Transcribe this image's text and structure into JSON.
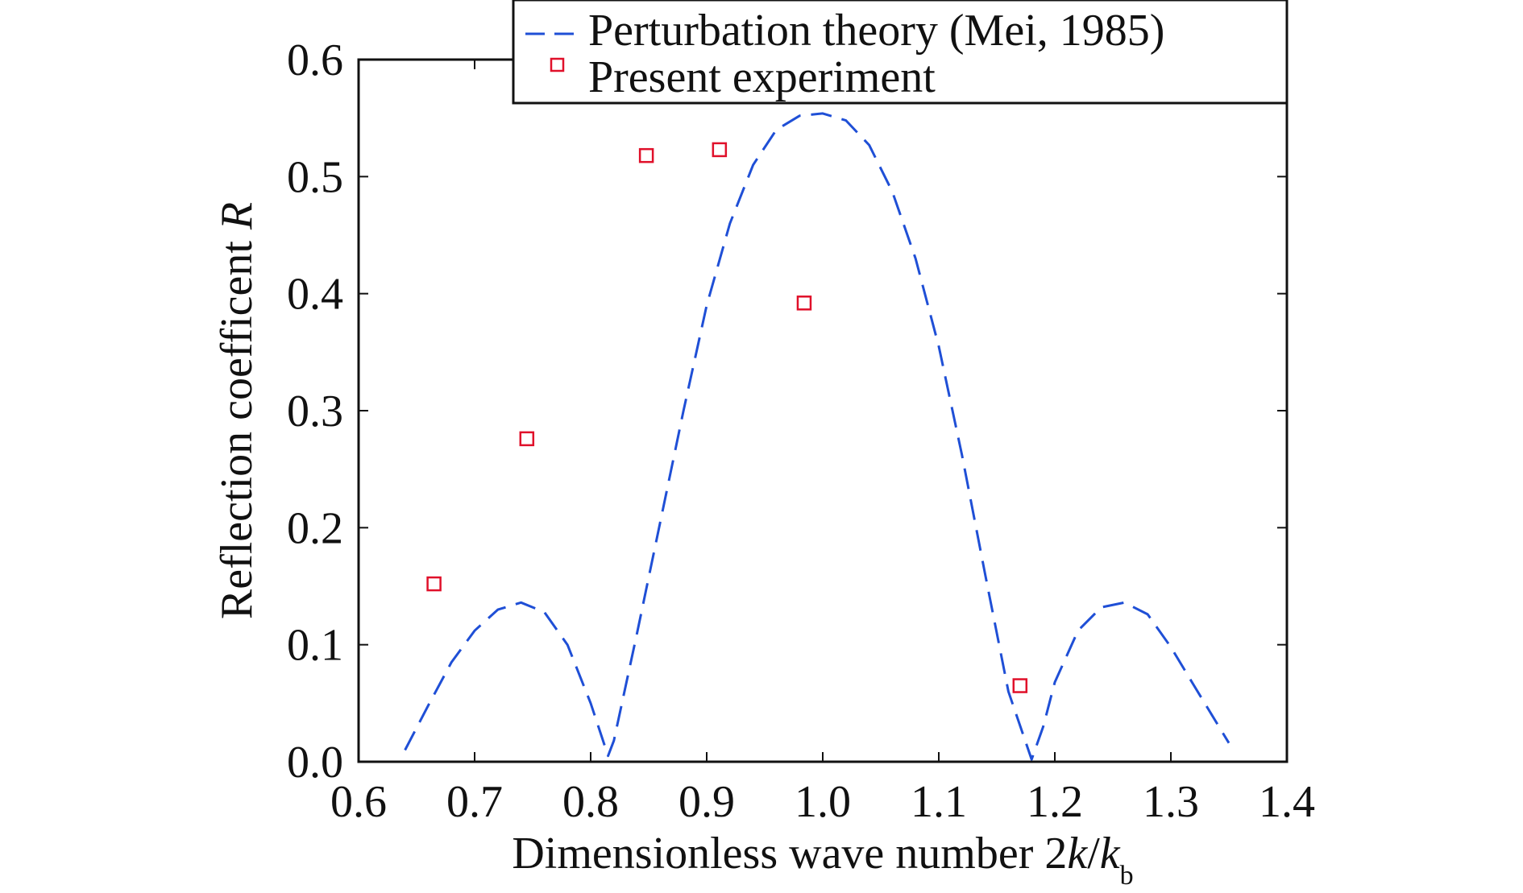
{
  "chart_data": {
    "type": "line",
    "title": "",
    "xlabel": "Dimensionless wave number 2k/k",
    "xlabel_parts": {
      "prefix": "Dimensionless wave number 2",
      "k1": "k",
      "slash": "/",
      "k2": "k",
      "sub": "b"
    },
    "ylabel": "Reflection coeffi",
    "ylabel_parts": {
      "text": "Reflection coefficent ",
      "var": "R"
    },
    "xlim": [
      0.6,
      1.4
    ],
    "ylim": [
      0.0,
      0.6
    ],
    "x_ticks": [
      "0.6",
      "0.7",
      "0.8",
      "0.9",
      "1.0",
      "1.1",
      "1.2",
      "1.3",
      "1.4"
    ],
    "y_ticks": [
      "0.0",
      "0.1",
      "0.2",
      "0.3",
      "0.4",
      "0.5",
      "0.6"
    ],
    "x_tick_values": [
      0.6,
      0.7,
      0.8,
      0.9,
      1.0,
      1.1,
      1.2,
      1.3,
      1.4
    ],
    "y_tick_values": [
      0.0,
      0.1,
      0.2,
      0.3,
      0.4,
      0.5,
      0.6
    ],
    "grid": false,
    "legend_position": "top-right",
    "series": [
      {
        "name": "Perturbation theory (Mei, 1985)",
        "style": "dashed-line",
        "color": "#1f4fd6",
        "x": [
          0.64,
          0.66,
          0.68,
          0.7,
          0.72,
          0.74,
          0.76,
          0.78,
          0.8,
          0.815,
          0.82,
          0.84,
          0.86,
          0.88,
          0.9,
          0.92,
          0.94,
          0.96,
          0.98,
          1.0,
          1.02,
          1.04,
          1.06,
          1.08,
          1.1,
          1.12,
          1.14,
          1.16,
          1.18,
          1.19,
          1.2,
          1.22,
          1.24,
          1.26,
          1.28,
          1.3,
          1.32,
          1.35
        ],
        "y": [
          0.01,
          0.048,
          0.085,
          0.112,
          0.13,
          0.136,
          0.128,
          0.1,
          0.05,
          0.005,
          0.018,
          0.11,
          0.205,
          0.3,
          0.39,
          0.46,
          0.51,
          0.54,
          0.552,
          0.554,
          0.548,
          0.527,
          0.487,
          0.43,
          0.355,
          0.262,
          0.16,
          0.06,
          0.002,
          0.03,
          0.068,
          0.112,
          0.132,
          0.136,
          0.126,
          0.098,
          0.065,
          0.016
        ]
      },
      {
        "name": "Present experiment",
        "style": "open-square-marker",
        "color": "#e0102a",
        "x": [
          0.665,
          0.745,
          0.848,
          0.911,
          0.984,
          1.17
        ],
        "y": [
          0.152,
          0.276,
          0.518,
          0.523,
          0.392,
          0.065
        ]
      }
    ]
  }
}
